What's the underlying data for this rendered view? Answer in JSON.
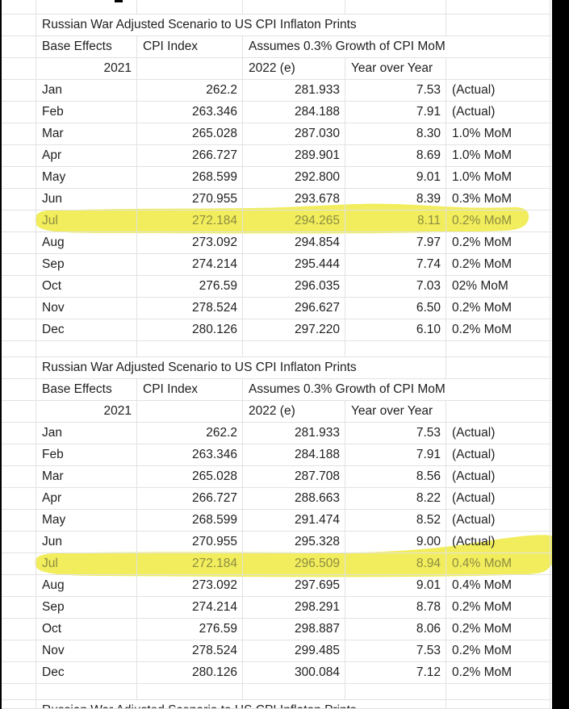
{
  "colors": {
    "grid": "#e2e2e2",
    "text": "#1e1e1e",
    "highlight": "#f1ed5c",
    "highlight_text": "#8e8c42",
    "edge": "#000000"
  },
  "tables": [
    {
      "title": "Russian War Adjusted Scenario to US CPI Inflaton Prints",
      "header": {
        "base_effects": "Base Effects",
        "cpi_index": "CPI Index",
        "assumes": "Assumes 0.3% Growth of CPI MoM"
      },
      "subheader": {
        "year_2021": "2021",
        "year_2022e": "2022 (e)",
        "yoy_label": "Year over Year"
      },
      "rows": [
        {
          "month": "Jan",
          "cpi_2021": "262.2",
          "cpi_2022e": "281.933",
          "yoy": "7.53",
          "note": "(Actual)",
          "highlighted": false
        },
        {
          "month": "Feb",
          "cpi_2021": "263.346",
          "cpi_2022e": "284.188",
          "yoy": "7.91",
          "note": "(Actual)",
          "highlighted": false
        },
        {
          "month": "Mar",
          "cpi_2021": "265.028",
          "cpi_2022e": "287.030",
          "yoy": "8.30",
          "note": "1.0% MoM",
          "highlighted": false
        },
        {
          "month": "Apr",
          "cpi_2021": "266.727",
          "cpi_2022e": "289.901",
          "yoy": "8.69",
          "note": "1.0% MoM",
          "highlighted": false
        },
        {
          "month": "May",
          "cpi_2021": "268.599",
          "cpi_2022e": "292.800",
          "yoy": "9.01",
          "note": "1.0% MoM",
          "highlighted": false
        },
        {
          "month": "Jun",
          "cpi_2021": "270.955",
          "cpi_2022e": "293.678",
          "yoy": "8.39",
          "note": "0.3% MoM",
          "highlighted": false
        },
        {
          "month": "Jul",
          "cpi_2021": "272.184",
          "cpi_2022e": "294.265",
          "yoy": "8.11",
          "note": "0.2% MoM",
          "highlighted": true
        },
        {
          "month": "Aug",
          "cpi_2021": "273.092",
          "cpi_2022e": "294.854",
          "yoy": "7.97",
          "note": "0.2% MoM",
          "highlighted": false
        },
        {
          "month": "Sep",
          "cpi_2021": "274.214",
          "cpi_2022e": "295.444",
          "yoy": "7.74",
          "note": "0.2% MoM",
          "highlighted": false
        },
        {
          "month": "Oct",
          "cpi_2021": "276.59",
          "cpi_2022e": "296.035",
          "yoy": "7.03",
          "note": "02% MoM",
          "highlighted": false
        },
        {
          "month": "Nov",
          "cpi_2021": "278.524",
          "cpi_2022e": "296.627",
          "yoy": "6.50",
          "note": "0.2% MoM",
          "highlighted": false
        },
        {
          "month": "Dec",
          "cpi_2021": "280.126",
          "cpi_2022e": "297.220",
          "yoy": "6.10",
          "note": "0.2% MoM",
          "highlighted": false
        }
      ]
    },
    {
      "title": "Russian War Adjusted Scenario to US CPI Inflaton Prints",
      "header": {
        "base_effects": "Base Effects",
        "cpi_index": "CPI Index",
        "assumes": "Assumes 0.3% Growth of CPI MoM"
      },
      "subheader": {
        "year_2021": "2021",
        "year_2022e": "2022 (e)",
        "yoy_label": "Year over Year"
      },
      "rows": [
        {
          "month": "Jan",
          "cpi_2021": "262.2",
          "cpi_2022e": "281.933",
          "yoy": "7.53",
          "note": "(Actual)",
          "highlighted": false
        },
        {
          "month": "Feb",
          "cpi_2021": "263.346",
          "cpi_2022e": "284.188",
          "yoy": "7.91",
          "note": "(Actual)",
          "highlighted": false
        },
        {
          "month": "Mar",
          "cpi_2021": "265.028",
          "cpi_2022e": "287.708",
          "yoy": "8.56",
          "note": "(Actual)",
          "highlighted": false
        },
        {
          "month": "Apr",
          "cpi_2021": "266.727",
          "cpi_2022e": "288.663",
          "yoy": "8.22",
          "note": "(Actual)",
          "highlighted": false
        },
        {
          "month": "May",
          "cpi_2021": "268.599",
          "cpi_2022e": "291.474",
          "yoy": "8.52",
          "note": "(Actual)",
          "highlighted": false
        },
        {
          "month": "Jun",
          "cpi_2021": "270.955",
          "cpi_2022e": "295.328",
          "yoy": "9.00",
          "note": "(Actual)",
          "highlighted": false
        },
        {
          "month": "Jul",
          "cpi_2021": "272.184",
          "cpi_2022e": "296.509",
          "yoy": "8.94",
          "note": "0.4% MoM",
          "highlighted": true
        },
        {
          "month": "Aug",
          "cpi_2021": "273.092",
          "cpi_2022e": "297.695",
          "yoy": "9.01",
          "note": "0.4% MoM",
          "highlighted": false
        },
        {
          "month": "Sep",
          "cpi_2021": "274.214",
          "cpi_2022e": "298.291",
          "yoy": "8.78",
          "note": "0.2% MoM",
          "highlighted": false
        },
        {
          "month": "Oct",
          "cpi_2021": "276.59",
          "cpi_2022e": "298.887",
          "yoy": "8.06",
          "note": "0.2% MoM",
          "highlighted": false
        },
        {
          "month": "Nov",
          "cpi_2021": "278.524",
          "cpi_2022e": "299.485",
          "yoy": "7.53",
          "note": "0.2% MoM",
          "highlighted": false
        },
        {
          "month": "Dec",
          "cpi_2021": "280.126",
          "cpi_2022e": "300.084",
          "yoy": "7.12",
          "note": "0.2% MoM",
          "highlighted": false
        }
      ]
    }
  ],
  "bottom_partial_title": "Russian War Adjusted Scenario to US CPI Inflaton Prints"
}
